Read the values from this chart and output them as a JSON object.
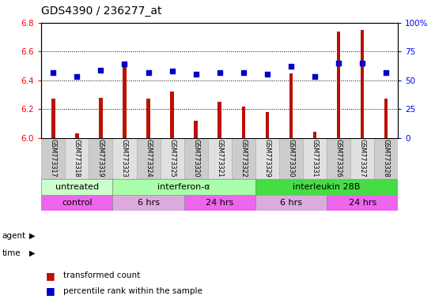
{
  "title": "GDS4390 / 236277_at",
  "samples": [
    "GSM773317",
    "GSM773318",
    "GSM773319",
    "GSM773323",
    "GSM773324",
    "GSM773325",
    "GSM773320",
    "GSM773321",
    "GSM773322",
    "GSM773329",
    "GSM773330",
    "GSM773331",
    "GSM773326",
    "GSM773327",
    "GSM773328"
  ],
  "transformed_count": [
    6.27,
    6.03,
    6.28,
    6.5,
    6.27,
    6.32,
    6.12,
    6.25,
    6.22,
    6.18,
    6.45,
    6.04,
    6.74,
    6.75,
    6.27
  ],
  "percentile_rank": [
    57,
    53,
    59,
    64,
    57,
    58,
    55,
    57,
    57,
    55,
    62,
    53,
    65,
    65,
    57
  ],
  "ylim_left": [
    6.0,
    6.8
  ],
  "ylim_right": [
    0,
    100
  ],
  "yticks_left": [
    6.0,
    6.2,
    6.4,
    6.6,
    6.8
  ],
  "yticks_right": [
    0,
    25,
    50,
    75,
    100
  ],
  "bar_color": "#bb1100",
  "dot_color": "#0000cc",
  "bar_width": 0.15,
  "agent_groups": [
    {
      "label": "untreated",
      "start": 0,
      "end": 3,
      "color": "#ccffcc"
    },
    {
      "label": "interferon-α",
      "start": 3,
      "end": 9,
      "color": "#aaffaa"
    },
    {
      "label": "interleukin 28B",
      "start": 9,
      "end": 15,
      "color": "#44dd44"
    }
  ],
  "time_groups": [
    {
      "label": "control",
      "start": 0,
      "end": 3,
      "color": "#ee66ee"
    },
    {
      "label": "6 hrs",
      "start": 3,
      "end": 6,
      "color": "#ddaadd"
    },
    {
      "label": "24 hrs",
      "start": 6,
      "end": 9,
      "color": "#ee66ee"
    },
    {
      "label": "6 hrs",
      "start": 9,
      "end": 12,
      "color": "#ddaadd"
    },
    {
      "label": "24 hrs",
      "start": 12,
      "end": 15,
      "color": "#ee66ee"
    }
  ]
}
